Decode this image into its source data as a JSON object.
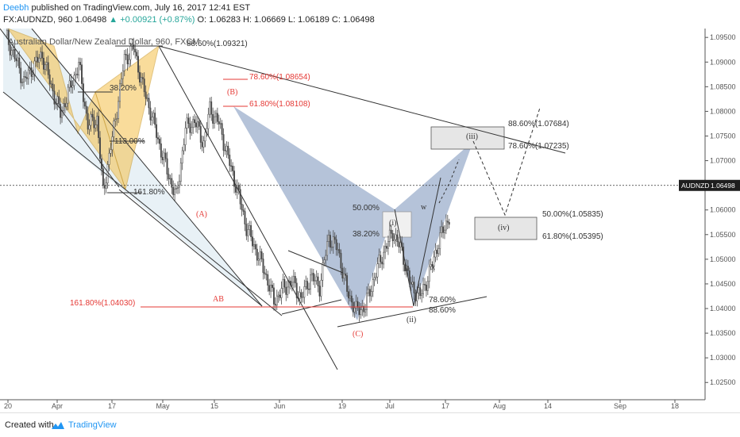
{
  "header": {
    "author": "Deebh",
    "published_text": "published on TradingView.com, July 16, 2017 12:41 EST",
    "symbol_line": "FX:AUDNZD, 960  1.06498",
    "change": "+0.00921 (+0.87%)",
    "ohlc": "O: 1.06283  H: 1.06669  L: 1.06189  C: 1.06498"
  },
  "footer": {
    "created_with": "Created with",
    "brand": "TradingView",
    "logo_icon": "tradingview-logo-icon"
  },
  "colors": {
    "up_candle": "#4a4a4a",
    "pattern_blue": "#8ea3c4",
    "pattern_orange": "#f5c04a",
    "fib_red": "#e53935",
    "trend_lines": "#333333",
    "price_tag_bg": "#1e1e1e"
  },
  "chart_data": {
    "type": "candlestick",
    "symbol_title": "Australian Dollar/New Zealand Dollar, 960, FXCM",
    "x_ticks": [
      "20",
      "Apr",
      "17",
      "May",
      "15",
      "Jun",
      "19",
      "Jul",
      "17",
      "Aug",
      "14",
      "Sep",
      "18"
    ],
    "y_ticks": [
      "1.09500",
      "1.09000",
      "1.08500",
      "1.08000",
      "1.07500",
      "1.07000",
      "1.06500",
      "1.06000",
      "1.05500",
      "1.05000",
      "1.04500",
      "1.04000",
      "1.03500",
      "1.03000",
      "1.02500"
    ],
    "ylim": [
      1.0215,
      1.0968
    ],
    "last_price": {
      "label": "AUDNZD",
      "value": "1.06498",
      "y": 1.06498
    },
    "candles_summary": "AUDNZD 16h candles, mid-March to mid-July 2017",
    "price_path": [
      [
        0,
        1.0955
      ],
      [
        6,
        1.091
      ],
      [
        12,
        1.086
      ],
      [
        18,
        1.089
      ],
      [
        24,
        1.0915
      ],
      [
        30,
        1.085
      ],
      [
        36,
        1.0795
      ],
      [
        42,
        1.0845
      ],
      [
        48,
        1.0895
      ],
      [
        54,
        1.0772
      ],
      [
        60,
        1.0785
      ],
      [
        64,
        1.0635
      ],
      [
        70,
        1.0745
      ],
      [
        78,
        1.0905
      ],
      [
        84,
        1.093
      ],
      [
        90,
        1.085
      ],
      [
        96,
        1.079
      ],
      [
        102,
        1.072
      ],
      [
        108,
        1.066
      ],
      [
        112,
        1.0625
      ],
      [
        118,
        1.0765
      ],
      [
        124,
        1.078
      ],
      [
        130,
        1.0735
      ],
      [
        134,
        1.0805
      ],
      [
        140,
        1.0775
      ],
      [
        146,
        1.0705
      ],
      [
        152,
        1.064
      ],
      [
        158,
        1.0565
      ],
      [
        164,
        1.052
      ],
      [
        170,
        1.0475
      ],
      [
        176,
        1.0415
      ],
      [
        182,
        1.044
      ],
      [
        188,
        1.0455
      ],
      [
        194,
        1.042
      ],
      [
        200,
        1.0465
      ],
      [
        206,
        1.0445
      ],
      [
        212,
        1.0545
      ],
      [
        218,
        1.052
      ],
      [
        224,
        1.0435
      ],
      [
        230,
        1.0395
      ],
      [
        236,
        1.0405
      ],
      [
        242,
        1.0465
      ],
      [
        248,
        1.0515
      ],
      [
        254,
        1.0555
      ],
      [
        260,
        1.0515
      ],
      [
        266,
        1.0445
      ],
      [
        272,
        1.0425
      ],
      [
        278,
        1.047
      ],
      [
        284,
        1.0535
      ],
      [
        290,
        1.058
      ],
      [
        296,
        1.0616
      ],
      [
        300,
        1.065
      ]
    ],
    "annotations": [
      {
        "id": "fib-886-top",
        "text": "88.60%(1.09321)",
        "price": 1.09321,
        "color": "#333333"
      },
      {
        "id": "fib-786-red",
        "text": "78.60%(1.08654)",
        "price": 1.08654,
        "color": "#e53935"
      },
      {
        "id": "fib-618-red",
        "text": "61.80%(1.08108)",
        "price": 1.08108,
        "color": "#e53935"
      },
      {
        "id": "fib-382-orange",
        "text": "38.20%",
        "price": 1.0845,
        "color": "#333333"
      },
      {
        "id": "fib-1130",
        "text": "113.00%",
        "price": 1.0755,
        "color": "#333333"
      },
      {
        "id": "fib-1618-orange",
        "text": "161.80%",
        "price": 1.0625,
        "color": "#333333"
      },
      {
        "id": "fib-1618-red",
        "text": "161.80%(1.04030)",
        "price": 1.0403,
        "color": "#e53935"
      },
      {
        "id": "fib-886-iii",
        "text": "88.60%(1.07684)",
        "price": 1.07684,
        "color": "#333333"
      },
      {
        "id": "fib-786-iii",
        "text": "78.60%(1.07235)",
        "price": 1.07235,
        "color": "#333333"
      },
      {
        "id": "fib-500-iv",
        "text": "50.00%(1.05835)",
        "price": 1.05835,
        "color": "#333333"
      },
      {
        "id": "fib-618-iv",
        "text": "61.80%(1.05395)",
        "price": 1.05395,
        "color": "#333333"
      },
      {
        "id": "fib-500-i",
        "text": "50.00%",
        "price": 1.0595,
        "color": "#333333"
      },
      {
        "id": "fib-382-i",
        "text": "38.20%",
        "price": 1.0548,
        "color": "#333333"
      },
      {
        "id": "fib-786-ii",
        "text": "78.60%",
        "price": 1.0418,
        "color": "#333333"
      },
      {
        "id": "fib-886-ii",
        "text": "88.60%",
        "price": 1.0403,
        "color": "#333333"
      }
    ],
    "wave_labels": [
      {
        "text": "(A)",
        "color": "#e53935"
      },
      {
        "text": "(B)",
        "color": "#e53935"
      },
      {
        "text": "(C)",
        "color": "#e53935"
      },
      {
        "text": "AB",
        "color": "#e53935"
      },
      {
        "text": "(i)",
        "color": "#333333"
      },
      {
        "text": "(ii)",
        "color": "#333333"
      },
      {
        "text": "(iii)",
        "color": "#333333"
      },
      {
        "text": "(iv)",
        "color": "#333333"
      },
      {
        "text": "w",
        "color": "#333333"
      },
      {
        "text": "x",
        "color": "#333333"
      }
    ],
    "grid": false
  }
}
